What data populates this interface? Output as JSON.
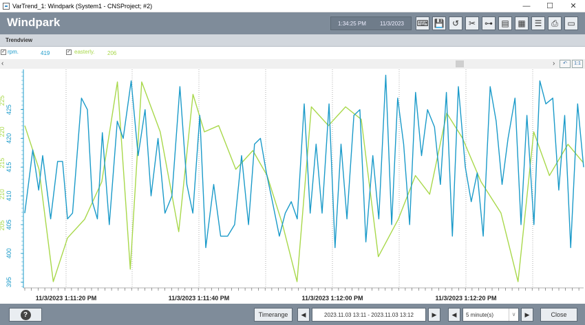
{
  "window": {
    "title": "VarTrend_1: Windpark (System1 - CNSProject; #2)",
    "minimize": "—",
    "maximize": "☐",
    "close": "✕"
  },
  "header": {
    "title": "Windpark",
    "time": "1:34:25 PM",
    "date": "11/3/2023"
  },
  "toolbar": {
    "icons": [
      "keyboard-icon",
      "save-icon",
      "refresh-icon",
      "settings-icon",
      "network-icon",
      "document-icon",
      "print-preview-icon",
      "list-icon",
      "printer-icon",
      "monitor-icon"
    ]
  },
  "subheader": {
    "label": "Trendview"
  },
  "legend": [
    {
      "name": "rpm.",
      "value": "419",
      "color": "#1a9ac9"
    },
    {
      "name": "easterly.",
      "value": "206",
      "color": "#a8d84a"
    }
  ],
  "scroll": {
    "left": "‹",
    "right": "›",
    "btn1": "↶",
    "btn2": "1:1"
  },
  "chart_data": {
    "type": "line",
    "series": [
      {
        "name": "rpm.",
        "color": "#1a9ac9",
        "values": [
          407,
          418,
          411,
          417,
          406,
          416,
          416,
          406,
          407,
          427,
          425,
          409,
          406,
          421,
          405,
          423,
          420,
          430,
          417,
          425,
          410,
          420,
          407,
          410,
          429,
          412,
          407,
          424,
          401,
          412,
          403,
          403,
          405,
          417,
          405,
          419,
          420,
          414,
          409,
          403,
          407,
          409,
          406,
          426,
          407,
          419,
          407,
          426,
          401,
          419,
          406,
          424,
          425,
          402,
          417,
          406,
          431,
          405,
          427,
          419,
          405,
          428,
          417,
          425,
          422,
          412,
          428,
          403,
          429,
          415,
          409,
          414,
          403,
          429,
          423,
          412,
          420,
          427,
          405,
          424,
          405,
          430,
          426,
          427,
          411,
          424,
          401,
          426,
          415
        ],
        "anchors": [
          [
            0,
            407
          ],
          [
            8,
            418
          ],
          [
            14,
            411
          ],
          [
            18,
            417
          ],
          [
            26,
            406
          ],
          [
            33,
            416
          ],
          [
            38,
            416
          ],
          [
            43,
            406
          ],
          [
            48,
            407
          ],
          [
            57,
            427
          ],
          [
            63,
            425
          ],
          [
            68,
            409
          ],
          [
            73,
            406
          ],
          [
            78,
            421
          ],
          [
            85,
            405
          ],
          [
            93,
            423
          ],
          [
            99,
            420
          ],
          [
            107,
            430
          ],
          [
            114,
            417
          ],
          [
            121,
            425
          ],
          [
            127,
            410
          ],
          [
            134,
            420
          ],
          [
            141,
            407
          ],
          [
            148,
            410
          ],
          [
            156,
            429
          ],
          [
            163,
            412
          ],
          [
            169,
            407
          ],
          [
            176,
            424
          ],
          [
            182,
            401
          ],
          [
            190,
            412
          ],
          [
            197,
            403
          ],
          [
            204,
            403
          ],
          [
            211,
            405
          ],
          [
            218,
            417
          ],
          [
            225,
            405
          ],
          [
            231,
            419
          ],
          [
            237,
            420
          ],
          [
            243,
            414
          ],
          [
            249,
            409
          ],
          [
            256,
            403
          ],
          [
            262,
            407
          ],
          [
            268,
            409
          ],
          [
            274,
            406
          ],
          [
            281,
            426
          ],
          [
            287,
            407
          ],
          [
            293,
            419
          ],
          [
            299,
            407
          ],
          [
            306,
            426
          ],
          [
            312,
            401
          ],
          [
            318,
            419
          ],
          [
            324,
            406
          ],
          [
            331,
            424
          ],
          [
            337,
            425
          ],
          [
            343,
            402
          ],
          [
            350,
            417
          ],
          [
            356,
            406
          ],
          [
            363,
            431
          ],
          [
            369,
            405
          ],
          [
            375,
            427
          ],
          [
            381,
            419
          ],
          [
            387,
            405
          ],
          [
            393,
            428
          ],
          [
            399,
            417
          ],
          [
            405,
            425
          ],
          [
            412,
            422
          ],
          [
            418,
            412
          ],
          [
            424,
            428
          ],
          [
            430,
            403
          ],
          [
            436,
            429
          ],
          [
            443,
            415
          ],
          [
            449,
            409
          ],
          [
            455,
            414
          ],
          [
            461,
            403
          ],
          [
            468,
            429
          ],
          [
            474,
            423
          ],
          [
            480,
            412
          ],
          [
            486,
            420
          ],
          [
            493,
            427
          ],
          [
            499,
            405
          ],
          [
            505,
            424
          ],
          [
            512,
            405
          ],
          [
            518,
            430
          ],
          [
            524,
            426
          ],
          [
            531,
            427
          ],
          [
            537,
            411
          ],
          [
            543,
            424
          ],
          [
            549,
            401
          ],
          [
            556,
            426
          ],
          [
            562,
            415
          ]
        ]
      },
      {
        "name": "easterly.",
        "color": "#a8d84a",
        "values": [
          221,
          214,
          196,
          203,
          206,
          212,
          228,
          198,
          228,
          220,
          204,
          226,
          220,
          221,
          214,
          217,
          213,
          205,
          196,
          224,
          221,
          224,
          222,
          200,
          206,
          213,
          210,
          223,
          219,
          212,
          207,
          196,
          220,
          213,
          218,
          215
        ],
        "anchors": [
          [
            0,
            221
          ],
          [
            10,
            214
          ],
          [
            20,
            196
          ],
          [
            30,
            203
          ],
          [
            42,
            206
          ],
          [
            54,
            212
          ],
          [
            65,
            228
          ],
          [
            74,
            198
          ],
          [
            82,
            228
          ],
          [
            95,
            220
          ],
          [
            108,
            204
          ],
          [
            118,
            226
          ],
          [
            126,
            220
          ],
          [
            136,
            221
          ],
          [
            148,
            214
          ],
          [
            160,
            217
          ],
          [
            170,
            213
          ],
          [
            181,
            205
          ],
          [
            191,
            196
          ],
          [
            201,
            224
          ],
          [
            213,
            221
          ],
          [
            225,
            224
          ],
          [
            236,
            222
          ],
          [
            248,
            200
          ],
          [
            262,
            206
          ],
          [
            274,
            213
          ],
          [
            284,
            210
          ],
          [
            296,
            223
          ],
          [
            307,
            219
          ],
          [
            320,
            212
          ],
          [
            334,
            207
          ],
          [
            346,
            196
          ],
          [
            357,
            220
          ],
          [
            368,
            213
          ],
          [
            381,
            218
          ],
          [
            392,
            215
          ]
        ]
      }
    ],
    "x_ticks": [
      "11/3/2023 1:11:20 PM",
      "11/3/2023 1:11:40 PM",
      "11/3/2023 1:12:00 PM",
      "11/3/2023 1:12:20 PM"
    ],
    "y_left_rpm": [
      "395",
      "400",
      "405",
      "410",
      "415",
      "420",
      "425"
    ],
    "y_left_easterly": [
      "205",
      "210",
      "215",
      "220",
      "225"
    ],
    "rpm_range": [
      394,
      432
    ],
    "easterly_range": [
      195,
      230
    ],
    "grid": true
  },
  "bottom": {
    "help_label": "?",
    "timerange_label": "Timerange",
    "range_text": "2023.11.03 13:11 - 2023.11.03 13:12",
    "interval_value": "5 minute(s)",
    "close_label": "Close"
  }
}
